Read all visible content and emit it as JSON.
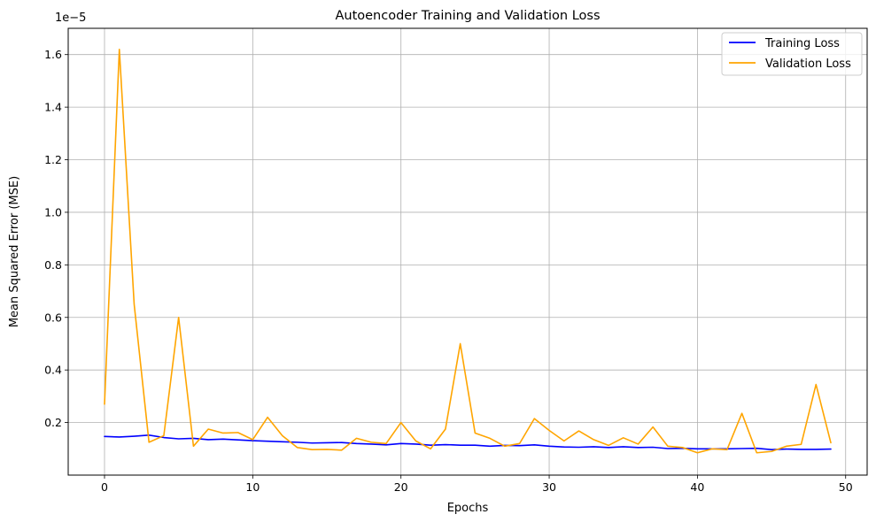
{
  "chart_data": {
    "type": "line",
    "title": "Autoencoder Training and Validation Loss",
    "xlabel": "Epochs",
    "ylabel": "Mean Squared Error (MSE)",
    "y_scale_label": "1e−5",
    "xlim": [
      -2.45,
      51.45
    ],
    "ylim": [
      0.0,
      1.7
    ],
    "x_ticks": [
      0,
      10,
      20,
      30,
      40,
      50
    ],
    "y_ticks": [
      0.2,
      0.4,
      0.6,
      0.8,
      1.0,
      1.2,
      1.4,
      1.6
    ],
    "x_tick_labels": [
      "0",
      "10",
      "20",
      "30",
      "40",
      "50"
    ],
    "y_tick_labels": [
      "0.2",
      "0.4",
      "0.6",
      "0.8",
      "1.0",
      "1.2",
      "1.4",
      "1.6"
    ],
    "grid": true,
    "legend_position": "top-right",
    "x": [
      0,
      1,
      2,
      3,
      4,
      5,
      6,
      7,
      8,
      9,
      10,
      11,
      12,
      13,
      14,
      15,
      16,
      17,
      18,
      19,
      20,
      21,
      22,
      23,
      24,
      25,
      26,
      27,
      28,
      29,
      30,
      31,
      32,
      33,
      34,
      35,
      36,
      37,
      38,
      39,
      40,
      41,
      42,
      43,
      44,
      45,
      46,
      47,
      48,
      49
    ],
    "series": [
      {
        "name": "Training Loss",
        "color": "#0000ff",
        "values": [
          0.147,
          0.145,
          0.148,
          0.152,
          0.143,
          0.138,
          0.14,
          0.135,
          0.137,
          0.134,
          0.131,
          0.129,
          0.127,
          0.125,
          0.122,
          0.123,
          0.124,
          0.12,
          0.118,
          0.115,
          0.12,
          0.118,
          0.114,
          0.116,
          0.114,
          0.114,
          0.11,
          0.113,
          0.112,
          0.115,
          0.11,
          0.107,
          0.106,
          0.108,
          0.105,
          0.108,
          0.105,
          0.106,
          0.101,
          0.102,
          0.1,
          0.1,
          0.1,
          0.101,
          0.102,
          0.097,
          0.099,
          0.098,
          0.098,
          0.099
        ]
      },
      {
        "name": "Validation Loss",
        "color": "#ffa500",
        "values": [
          0.27,
          1.62,
          0.65,
          0.125,
          0.15,
          0.6,
          0.11,
          0.175,
          0.16,
          0.162,
          0.135,
          0.22,
          0.15,
          0.105,
          0.097,
          0.098,
          0.095,
          0.14,
          0.125,
          0.12,
          0.2,
          0.13,
          0.1,
          0.175,
          0.5,
          0.16,
          0.14,
          0.11,
          0.12,
          0.215,
          0.17,
          0.13,
          0.168,
          0.135,
          0.113,
          0.142,
          0.118,
          0.183,
          0.11,
          0.105,
          0.085,
          0.1,
          0.097,
          0.235,
          0.085,
          0.09,
          0.11,
          0.117,
          0.345,
          0.123
        ]
      }
    ]
  }
}
